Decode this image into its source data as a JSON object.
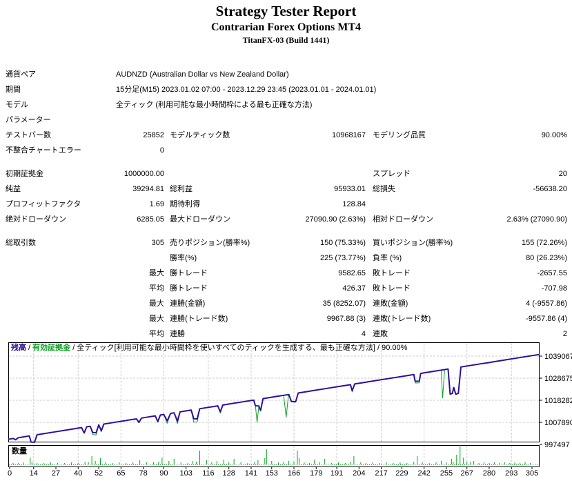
{
  "header": {
    "title": "Strategy Tester Report",
    "ea_name": "Contrarian Forex Options MT4",
    "server": "TitanFX-03 (Build 1441)"
  },
  "table": {
    "rows": [
      {
        "span": true,
        "c1": "通貨ペア",
        "full": "AUDNZD (Australian Dollar vs New Zealand Dollar)"
      },
      {
        "span": true,
        "c1": "期間",
        "full": "15分足(M15) 2023.01.02 07:00 - 2023.12.29 23:45 (2023.01.01 - 2024.01.01)"
      },
      {
        "span": true,
        "c1": "モデル",
        "full": "全ティック (利用可能な最小時間枠による最も正確な方法)"
      },
      {
        "span": true,
        "c1": "パラメーター",
        "full": ""
      },
      {
        "c1": "テストバー数",
        "v1": "25852",
        "c2": "モデルティック数",
        "v2": "10968167",
        "c3": "モデリング品質",
        "v3": "90.00%"
      },
      {
        "c1": "不整合チャートエラー",
        "v1": "0",
        "c2": "",
        "v2": "",
        "c3": "",
        "v3": ""
      },
      {
        "gap": true
      },
      {
        "c1": "初期証拠金",
        "v1": "1000000.00",
        "c2": "",
        "v2": "",
        "c3": "スプレッド",
        "v3": "20"
      },
      {
        "c1": "純益",
        "v1": "39294.81",
        "c2": "総利益",
        "v2": "95933.01",
        "c3": "総損失",
        "v3": "-56638.20"
      },
      {
        "c1": "プロフィットファクタ",
        "v1": "1.69",
        "c2": "期待利得",
        "v2": "128.84",
        "c3": "",
        "v3": ""
      },
      {
        "c1": "絶対ドローダウン",
        "v1": "6285.05",
        "c2": "最大ドローダウン",
        "v2": "27090.90 (2.63%)",
        "c3": "相対ドローダウン",
        "v3": "2.63% (27090.90)"
      },
      {
        "gap": true
      },
      {
        "c1": "総取引数",
        "v1": "305",
        "c2": "売りポジション(勝率%)",
        "v2": "150 (75.33%)",
        "c3": "買いポジション(勝率%)",
        "v3": "155 (72.26%)"
      },
      {
        "c1": "",
        "v1": "",
        "c2": "勝率(%)",
        "v2": "225 (73.77%)",
        "c3": "負率 (%)",
        "v3": "80 (26.23%)"
      },
      {
        "c1": "",
        "v1": "最大",
        "c2": "勝トレード",
        "v2": "9582.65",
        "c3": "敗トレード",
        "v3": "-2657.55"
      },
      {
        "c1": "",
        "v1": "平均",
        "c2": "勝トレード",
        "v2": "426.37",
        "c3": "敗トレード",
        "v3": "-707.98"
      },
      {
        "c1": "",
        "v1": "最大",
        "c2": "連勝(金額)",
        "v2": "35 (8252.07)",
        "c3": "連敗(金額)",
        "v3": "4 (-9557.86)"
      },
      {
        "c1": "",
        "v1": "最大",
        "c2": "連勝(トレード数)",
        "v2": "9967.88 (3)",
        "c3": "連敗(トレード数)",
        "v3": "-9557.86 (4)"
      },
      {
        "c1": "",
        "v1": "平均",
        "c2": "連勝",
        "v2": "4",
        "c3": "連敗",
        "v3": "2"
      }
    ]
  },
  "chart_data": {
    "type": "line",
    "legend": {
      "balance_label": "残高",
      "equity_label": "有効証拠金",
      "model_label": "全ティック[利用可能な最小時間枠を使いすべてのティックを生成する、最も正確な方法]",
      "quality": "90.00%",
      "separator": " / "
    },
    "volume_label": "数量",
    "colors": {
      "balance": "#2d0e9c",
      "equity": "#0ba122",
      "grid": "#cdcdcd",
      "axis_text": "#000000"
    },
    "axis": {
      "x_ticks": [
        0,
        14,
        27,
        40,
        52,
        65,
        78,
        90,
        103,
        116,
        128,
        141,
        153,
        166,
        179,
        191,
        204,
        217,
        229,
        242,
        255,
        267,
        280,
        293,
        305
      ],
      "y_ticks": [
        1039067,
        1028675,
        1018282,
        1007890,
        997497
      ],
      "x_range": [
        0,
        305
      ],
      "grid": true,
      "legend_position": "top-left"
    },
    "balance_points": [
      [
        -0.8,
        999900
      ],
      [
        0,
        1000000
      ],
      [
        2,
        1000300
      ],
      [
        3.5,
        999700
      ],
      [
        5,
        1000640
      ],
      [
        8,
        1001030
      ],
      [
        10,
        1001290
      ],
      [
        11.5,
        1001480
      ],
      [
        12.5,
        998600
      ],
      [
        14.5,
        998500
      ],
      [
        16,
        1002060
      ],
      [
        20,
        1002580
      ],
      [
        24,
        1003090
      ],
      [
        28,
        1003610
      ],
      [
        32,
        1004120
      ],
      [
        36,
        1004640
      ],
      [
        40,
        1005150
      ],
      [
        42,
        1005410
      ],
      [
        43.5,
        1002900
      ],
      [
        45,
        1005800
      ],
      [
        47,
        1006050
      ],
      [
        48.5,
        1003100
      ],
      [
        50.5,
        1003000
      ],
      [
        52,
        1006700
      ],
      [
        53.5,
        1003900
      ],
      [
        55,
        1007080
      ],
      [
        58,
        1007470
      ],
      [
        62,
        1007990
      ],
      [
        66,
        1008500
      ],
      [
        70,
        1009020
      ],
      [
        74,
        1009530
      ],
      [
        75.5,
        1007850
      ],
      [
        77,
        1009920
      ],
      [
        81,
        1010430
      ],
      [
        85,
        1010950
      ],
      [
        86.5,
        1008200
      ],
      [
        88,
        1011330
      ],
      [
        90,
        1011590
      ],
      [
        92,
        1008600
      ],
      [
        94,
        1012110
      ],
      [
        96,
        1012360
      ],
      [
        98,
        1008500
      ],
      [
        99.5,
        1012820
      ],
      [
        103,
        1013270
      ],
      [
        106,
        1013650
      ],
      [
        107.5,
        1009600
      ],
      [
        109.5,
        1009500
      ],
      [
        111,
        1014300
      ],
      [
        115,
        1014810
      ],
      [
        119,
        1015330
      ],
      [
        121.5,
        1015650
      ],
      [
        123,
        1012900
      ],
      [
        124.5,
        1016040
      ],
      [
        128,
        1016490
      ],
      [
        132,
        1017010
      ],
      [
        136,
        1017520
      ],
      [
        140,
        1018030
      ],
      [
        142.5,
        1018350
      ],
      [
        143.5,
        1015700
      ],
      [
        145.5,
        1015600
      ],
      [
        146.5,
        1013400
      ],
      [
        148,
        1019060
      ],
      [
        152,
        1019580
      ],
      [
        156,
        1020090
      ],
      [
        160,
        1020610
      ],
      [
        163,
        1020990
      ],
      [
        164.5,
        1017700
      ],
      [
        167,
        1017600
      ],
      [
        168.5,
        1021700
      ],
      [
        172,
        1022150
      ],
      [
        176,
        1022670
      ],
      [
        180,
        1023180
      ],
      [
        184,
        1023700
      ],
      [
        188,
        1024210
      ],
      [
        192,
        1024730
      ],
      [
        196,
        1025240
      ],
      [
        199,
        1025630
      ],
      [
        200,
        1022800
      ],
      [
        201.5,
        1025950
      ],
      [
        206,
        1026530
      ],
      [
        210,
        1027050
      ],
      [
        214,
        1027560
      ],
      [
        218,
        1028080
      ],
      [
        222,
        1028590
      ],
      [
        226,
        1029110
      ],
      [
        230,
        1029620
      ],
      [
        234,
        1030140
      ],
      [
        236,
        1030400
      ],
      [
        236.8,
        1027200
      ],
      [
        239.2,
        1027300
      ],
      [
        240,
        1030910
      ],
      [
        244,
        1031430
      ],
      [
        248,
        1031940
      ],
      [
        252,
        1032460
      ],
      [
        256,
        1032970
      ],
      [
        257.2,
        1021200
      ],
      [
        258.5,
        1021500
      ],
      [
        259.3,
        1024300
      ],
      [
        260.5,
        1021100
      ],
      [
        262,
        1021600
      ],
      [
        263.5,
        1033940
      ],
      [
        267,
        1034390
      ],
      [
        271,
        1034900
      ],
      [
        275,
        1035420
      ],
      [
        279,
        1035930
      ],
      [
        283,
        1036450
      ],
      [
        287,
        1036960
      ],
      [
        291,
        1037480
      ],
      [
        295,
        1037990
      ],
      [
        299,
        1038510
      ],
      [
        302,
        1038900
      ],
      [
        305,
        1039295
      ],
      [
        309.4,
        1039860
      ]
    ],
    "equity_points": [
      [
        -0.8,
        999900
      ],
      [
        0,
        1000000
      ],
      [
        2,
        1000300
      ],
      [
        3.5,
        999700
      ],
      [
        5,
        1000640
      ],
      [
        8,
        1001030
      ],
      [
        10,
        1001290
      ],
      [
        11.5,
        1001480
      ],
      [
        12.5,
        998600
      ],
      [
        14.5,
        998500
      ],
      [
        16,
        1002060
      ],
      [
        20,
        1002580
      ],
      [
        24,
        1003090
      ],
      [
        28,
        1003610
      ],
      [
        32,
        1004120
      ],
      [
        36,
        1004640
      ],
      [
        40,
        1005150
      ],
      [
        42,
        1005410
      ],
      [
        43.5,
        1002700
      ],
      [
        45,
        1005800
      ],
      [
        47,
        1006050
      ],
      [
        48.5,
        1002100
      ],
      [
        50.5,
        1002000
      ],
      [
        52,
        1006700
      ],
      [
        53.5,
        1003500
      ],
      [
        55,
        1007080
      ],
      [
        58,
        1007470
      ],
      [
        62,
        1007990
      ],
      [
        66,
        1008500
      ],
      [
        70,
        1009020
      ],
      [
        74,
        1009530
      ],
      [
        75.5,
        1007650
      ],
      [
        77,
        1009920
      ],
      [
        81,
        1010430
      ],
      [
        85,
        1010950
      ],
      [
        86.5,
        1007900
      ],
      [
        88,
        1011330
      ],
      [
        90,
        1011590
      ],
      [
        92,
        1007400
      ],
      [
        94,
        1012110
      ],
      [
        96,
        1012360
      ],
      [
        98,
        1007300
      ],
      [
        99.5,
        1012820
      ],
      [
        103,
        1013270
      ],
      [
        106,
        1013650
      ],
      [
        107.5,
        1008000
      ],
      [
        109.5,
        1008100
      ],
      [
        111,
        1014300
      ],
      [
        115,
        1014810
      ],
      [
        119,
        1015330
      ],
      [
        121.5,
        1015650
      ],
      [
        123,
        1012200
      ],
      [
        124.5,
        1016040
      ],
      [
        128,
        1016490
      ],
      [
        132,
        1017010
      ],
      [
        136,
        1017520
      ],
      [
        140,
        1018030
      ],
      [
        142.5,
        1018350
      ],
      [
        143.5,
        1015700
      ],
      [
        144.5,
        1007900
      ],
      [
        145.5,
        1015600
      ],
      [
        146.5,
        1013400
      ],
      [
        148,
        1019060
      ],
      [
        152,
        1019580
      ],
      [
        156,
        1020090
      ],
      [
        160,
        1020610
      ],
      [
        161.5,
        1010300
      ],
      [
        162.8,
        1020800
      ],
      [
        163,
        1020990
      ],
      [
        164.5,
        1017500
      ],
      [
        167,
        1017400
      ],
      [
        168.5,
        1021700
      ],
      [
        172,
        1022150
      ],
      [
        176,
        1022670
      ],
      [
        180,
        1023180
      ],
      [
        184,
        1023700
      ],
      [
        188,
        1024210
      ],
      [
        192,
        1024730
      ],
      [
        196,
        1025240
      ],
      [
        199,
        1025630
      ],
      [
        200,
        1022200
      ],
      [
        201.5,
        1025950
      ],
      [
        206,
        1026530
      ],
      [
        210,
        1027050
      ],
      [
        214,
        1027560
      ],
      [
        218,
        1028080
      ],
      [
        222,
        1028590
      ],
      [
        226,
        1029110
      ],
      [
        230,
        1029620
      ],
      [
        234,
        1030140
      ],
      [
        236,
        1030400
      ],
      [
        236.8,
        1026400
      ],
      [
        239.2,
        1026500
      ],
      [
        240,
        1030910
      ],
      [
        244,
        1031430
      ],
      [
        248,
        1031940
      ],
      [
        252,
        1032460
      ],
      [
        252.8,
        1019400
      ],
      [
        254,
        1032600
      ],
      [
        256,
        1032970
      ],
      [
        257.2,
        1021200
      ],
      [
        258.5,
        1021500
      ],
      [
        259.3,
        1024300
      ],
      [
        260.5,
        1021100
      ],
      [
        262,
        1021600
      ],
      [
        263.5,
        1033940
      ],
      [
        267,
        1034390
      ],
      [
        271,
        1034900
      ],
      [
        275,
        1035420
      ],
      [
        279,
        1035930
      ],
      [
        283,
        1036450
      ],
      [
        287,
        1036960
      ],
      [
        291,
        1037480
      ],
      [
        295,
        1037990
      ],
      [
        299,
        1038510
      ],
      [
        302,
        1038900
      ],
      [
        305,
        1039295
      ],
      [
        309.4,
        1039860
      ]
    ],
    "volume_bars": [
      [
        2,
        2
      ],
      [
        5,
        2
      ],
      [
        8,
        3
      ],
      [
        12,
        10
      ],
      [
        13,
        4
      ],
      [
        16,
        2
      ],
      [
        20,
        2
      ],
      [
        24,
        3
      ],
      [
        28,
        2
      ],
      [
        32,
        2
      ],
      [
        36,
        3
      ],
      [
        40,
        2
      ],
      [
        44,
        4
      ],
      [
        46,
        3
      ],
      [
        48,
        12
      ],
      [
        50,
        5
      ],
      [
        53,
        9
      ],
      [
        56,
        3
      ],
      [
        60,
        2
      ],
      [
        64,
        3
      ],
      [
        68,
        2
      ],
      [
        72,
        3
      ],
      [
        76,
        6
      ],
      [
        80,
        3
      ],
      [
        84,
        3
      ],
      [
        87,
        4
      ],
      [
        89,
        10
      ],
      [
        93,
        5
      ],
      [
        96,
        8
      ],
      [
        100,
        3
      ],
      [
        104,
        2
      ],
      [
        107,
        5
      ],
      [
        109,
        4
      ],
      [
        111,
        20
      ],
      [
        115,
        6
      ],
      [
        118,
        3
      ],
      [
        121,
        5
      ],
      [
        125,
        7
      ],
      [
        128,
        3
      ],
      [
        131,
        8
      ],
      [
        135,
        3
      ],
      [
        139,
        2
      ],
      [
        143,
        4
      ],
      [
        145,
        6
      ],
      [
        149,
        9
      ],
      [
        150,
        22
      ],
      [
        153,
        5
      ],
      [
        157,
        3
      ],
      [
        160,
        4
      ],
      [
        163,
        5
      ],
      [
        166,
        4
      ],
      [
        168,
        20
      ],
      [
        169,
        9
      ],
      [
        172,
        3
      ],
      [
        175,
        2
      ],
      [
        178,
        7
      ],
      [
        181,
        3
      ],
      [
        184,
        8
      ],
      [
        188,
        2
      ],
      [
        192,
        3
      ],
      [
        196,
        2
      ],
      [
        199,
        4
      ],
      [
        201,
        12
      ],
      [
        205,
        3
      ],
      [
        208,
        2
      ],
      [
        212,
        3
      ],
      [
        216,
        2
      ],
      [
        220,
        3
      ],
      [
        224,
        2
      ],
      [
        228,
        3
      ],
      [
        232,
        2
      ],
      [
        236,
        4
      ],
      [
        238,
        12
      ],
      [
        241,
        3
      ],
      [
        245,
        2
      ],
      [
        249,
        3
      ],
      [
        252,
        5
      ],
      [
        255,
        3
      ],
      [
        258,
        8
      ],
      [
        259,
        4
      ],
      [
        261,
        14
      ],
      [
        263,
        28
      ],
      [
        265,
        10
      ],
      [
        267,
        4
      ],
      [
        269,
        3
      ],
      [
        271,
        5
      ],
      [
        274,
        2
      ],
      [
        277,
        3
      ],
      [
        280,
        2
      ],
      [
        283,
        3
      ],
      [
        286,
        2
      ],
      [
        289,
        3
      ],
      [
        292,
        2
      ],
      [
        295,
        3
      ],
      [
        298,
        2
      ],
      [
        301,
        3
      ],
      [
        304,
        2
      ]
    ]
  }
}
